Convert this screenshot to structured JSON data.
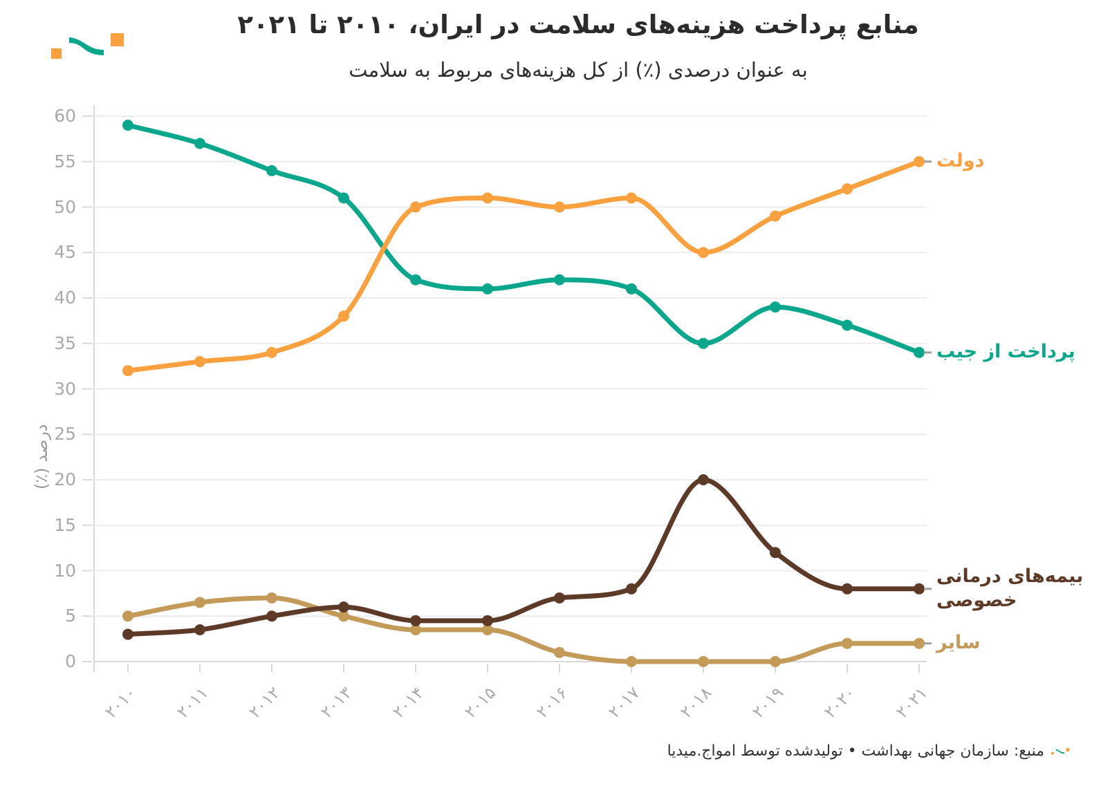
{
  "title": "منابع پرداخت هزینه‌های سلامت در ایران، ۲۰۱۰ تا ۲۰۲۱",
  "subtitle": "به عنوان درصدی (٪) از کل هزینه‌های مربوط به سلامت",
  "footer": {
    "source_text": "منبع: سازمان جهانی بهداشت • تولیدشده توسط امواج.میدیا"
  },
  "logo": {
    "teal": "#0ba78c",
    "orange": "#f9a03f"
  },
  "colors": {
    "grid": "#ececec",
    "axis": "#d9d9d9",
    "tick_text": "#a9a9a9",
    "legend_dash": "#9e9e9e",
    "title_text": "#2b2b2b",
    "footer_text": "#333333"
  },
  "chart_data": {
    "type": "line",
    "title": "منابع پرداخت هزینه‌های سلامت در ایران، ۲۰۱۰ تا ۲۰۲۱",
    "subtitle": "به عنوان درصدی (٪) از کل هزینه‌های مربوط به سلامت",
    "xlabel": "",
    "ylabel": "درصد (٪)",
    "ylim": [
      0,
      60
    ],
    "yticks": [
      0,
      5,
      10,
      15,
      20,
      25,
      30,
      35,
      40,
      45,
      50,
      55,
      60
    ],
    "grid": "horizontal",
    "legend_position": "right-of-line-ends",
    "x": [
      2010,
      2011,
      2012,
      2013,
      2014,
      2015,
      2016,
      2017,
      2018,
      2019,
      2020,
      2021
    ],
    "x_tick_labels": [
      "۲۰۱۰",
      "۲۰۱۱",
      "۲۰۱۲",
      "۲۰۱۳",
      "۲۰۱۴",
      "۲۰۱۵",
      "۲۰۱۶",
      "۲۰۱۷",
      "۲۰۱۸",
      "۲۰۱۹",
      "۲۰۲۰",
      "۲۰۲۱"
    ],
    "series": [
      {
        "key": "government",
        "name": "دولت",
        "name_lines": [
          "دولت"
        ],
        "color": "#f9a03f",
        "values": [
          32,
          33,
          34,
          38,
          50,
          51,
          50,
          51,
          45,
          49,
          52,
          55
        ]
      },
      {
        "key": "out-of-pocket",
        "name": "پرداخت از جیب",
        "name_lines": [
          "پرداخت از جیب"
        ],
        "color": "#0ba78c",
        "values": [
          59,
          57,
          54,
          51,
          42,
          41,
          42,
          41,
          35,
          39,
          37,
          34
        ]
      },
      {
        "key": "private-insurance",
        "name": "بیمه‌های درمانی خصوصی",
        "name_lines": [
          "بیمه‌های درمانی",
          "خصوصی"
        ],
        "color": "#5d3a27",
        "values": [
          3,
          3.5,
          5,
          6,
          4.5,
          4.5,
          7,
          8,
          20,
          12,
          8,
          8
        ]
      },
      {
        "key": "other",
        "name": "سایر",
        "name_lines": [
          "سایر"
        ],
        "color": "#c49a59",
        "values": [
          5,
          6.5,
          7,
          5,
          3.5,
          3.5,
          1,
          0,
          0,
          0,
          2,
          2
        ]
      }
    ]
  }
}
